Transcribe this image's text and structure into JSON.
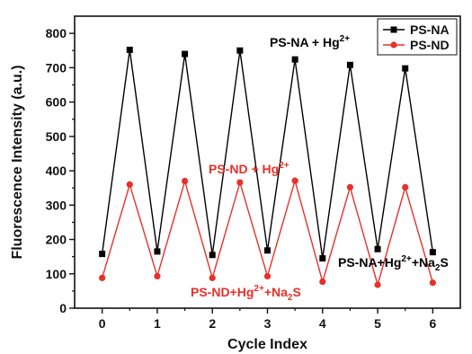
{
  "chart_data": {
    "type": "line",
    "xlabel": "Cycle Index",
    "ylabel": "Fluorescence Intensity (a.u.)",
    "xlim": [
      -0.5,
      6.5
    ],
    "ylim": [
      0,
      850
    ],
    "xticks": [
      0,
      1,
      2,
      3,
      4,
      5,
      6
    ],
    "yticks": [
      0,
      100,
      200,
      300,
      400,
      500,
      600,
      700,
      800
    ],
    "grid": false,
    "legend_position": "top-right",
    "series": [
      {
        "name": "PS-NA",
        "color": "#000000",
        "marker": "square",
        "x": [
          0,
          0.5,
          1,
          1.5,
          2,
          2.5,
          3,
          3.5,
          4,
          4.5,
          5,
          5.5,
          6
        ],
        "y": [
          158,
          752,
          165,
          740,
          155,
          750,
          168,
          724,
          145,
          708,
          172,
          698,
          163
        ]
      },
      {
        "name": "PS-ND",
        "color": "#e8302a",
        "marker": "circle",
        "x": [
          0,
          0.5,
          1,
          1.5,
          2,
          2.5,
          3,
          3.5,
          4,
          4.5,
          5,
          5.5,
          6
        ],
        "y": [
          88,
          360,
          93,
          370,
          88,
          366,
          93,
          371,
          77,
          352,
          68,
          352,
          74
        ]
      }
    ],
    "annotations": [
      {
        "id": "na-hg",
        "base": "PS-NA + Hg",
        "sup": "2+",
        "sub": "",
        "tail": "",
        "color": "#000000"
      },
      {
        "id": "nd-hg",
        "base": "PS-ND + Hg",
        "sup": "2+",
        "sub": "",
        "tail": "",
        "color": "#e8302a"
      },
      {
        "id": "na-hg-na2s",
        "base": "PS-NA+Hg",
        "sup": "2+",
        "mid": "+Na",
        "sub": "2",
        "tail": "S",
        "color": "#000000"
      },
      {
        "id": "nd-hg-na2s",
        "base": "PS-ND+Hg",
        "sup": "2+",
        "mid": "+Na",
        "sub": "2",
        "tail": "S",
        "color": "#e8302a"
      }
    ]
  }
}
